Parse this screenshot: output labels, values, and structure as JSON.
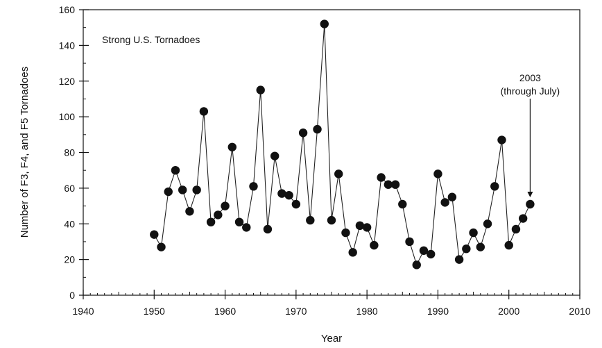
{
  "chart_data": {
    "type": "scatter",
    "title": "Strong U.S. Tornadoes",
    "xlabel": "Year",
    "ylabel": "Number of F3, F4, and F5 Tornadoes",
    "xlim": [
      1940,
      2010
    ],
    "ylim": [
      0,
      160
    ],
    "x_ticks": [
      "1940",
      "1950",
      "1960",
      "1970",
      "1980",
      "1990",
      "2000",
      "2010"
    ],
    "y_ticks": [
      "0",
      "20",
      "40",
      "60",
      "80",
      "100",
      "120",
      "140",
      "160"
    ],
    "grid": false,
    "series": [
      {
        "x": [
          1950,
          1951,
          1952,
          1953,
          1954,
          1955,
          1956,
          1957,
          1958,
          1959,
          1960,
          1961,
          1962,
          1963,
          1964,
          1965,
          1966,
          1967,
          1968,
          1969,
          1970,
          1971,
          1972,
          1973,
          1974,
          1975,
          1976,
          1977,
          1978,
          1979,
          1980,
          1981,
          1982,
          1983,
          1984,
          1985,
          1986,
          1987,
          1988,
          1989,
          1990,
          1991,
          1992,
          1993,
          1994,
          1995,
          1996,
          1997,
          1998,
          1999,
          2000,
          2001,
          2002,
          2003
        ],
        "y": [
          34,
          27,
          58,
          70,
          59,
          47,
          59,
          103,
          41,
          45,
          50,
          83,
          41,
          38,
          61,
          115,
          37,
          78,
          57,
          56,
          51,
          91,
          42,
          93,
          152,
          42,
          68,
          35,
          24,
          39,
          38,
          28,
          66,
          62,
          62,
          51,
          30,
          17,
          25,
          23,
          68,
          52,
          55,
          20,
          26,
          35,
          27,
          40,
          61,
          87,
          28,
          37,
          43,
          51
        ]
      }
    ],
    "annotations": [
      {
        "lines": [
          "2003",
          "(through July)"
        ],
        "target_x": 2003,
        "target_y": 51
      }
    ]
  }
}
